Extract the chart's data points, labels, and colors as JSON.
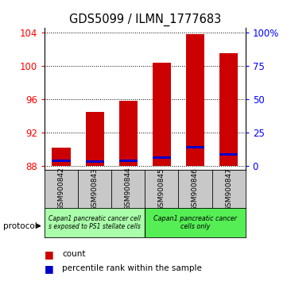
{
  "title": "GDS5099 / ILMN_1777683",
  "samples": [
    "GSM900842",
    "GSM900843",
    "GSM900844",
    "GSM900845",
    "GSM900846",
    "GSM900847"
  ],
  "count_values": [
    90.2,
    94.5,
    95.8,
    100.4,
    103.8,
    101.5
  ],
  "percentile_values": [
    88.6,
    88.55,
    88.6,
    88.95,
    90.2,
    89.4
  ],
  "ymin": 87.5,
  "ymax": 104.5,
  "yticks": [
    88,
    92,
    96,
    100,
    104
  ],
  "right_yticks": [
    0,
    25,
    50,
    75,
    100
  ],
  "bar_color": "#cc0000",
  "percentile_color": "#0000cc",
  "group1_label": "Capan1 pancreatic cancer cell\ns exposed to PS1 stellate cells",
  "group2_label": "Capan1 pancreatic cancer\ncells only",
  "group1_color": "#aaffaa",
  "group2_color": "#55ee55",
  "xlabel_area_color": "#c8c8c8",
  "bar_width": 0.55,
  "legend_count_label": "count",
  "legend_percentile_label": "percentile rank within the sample"
}
